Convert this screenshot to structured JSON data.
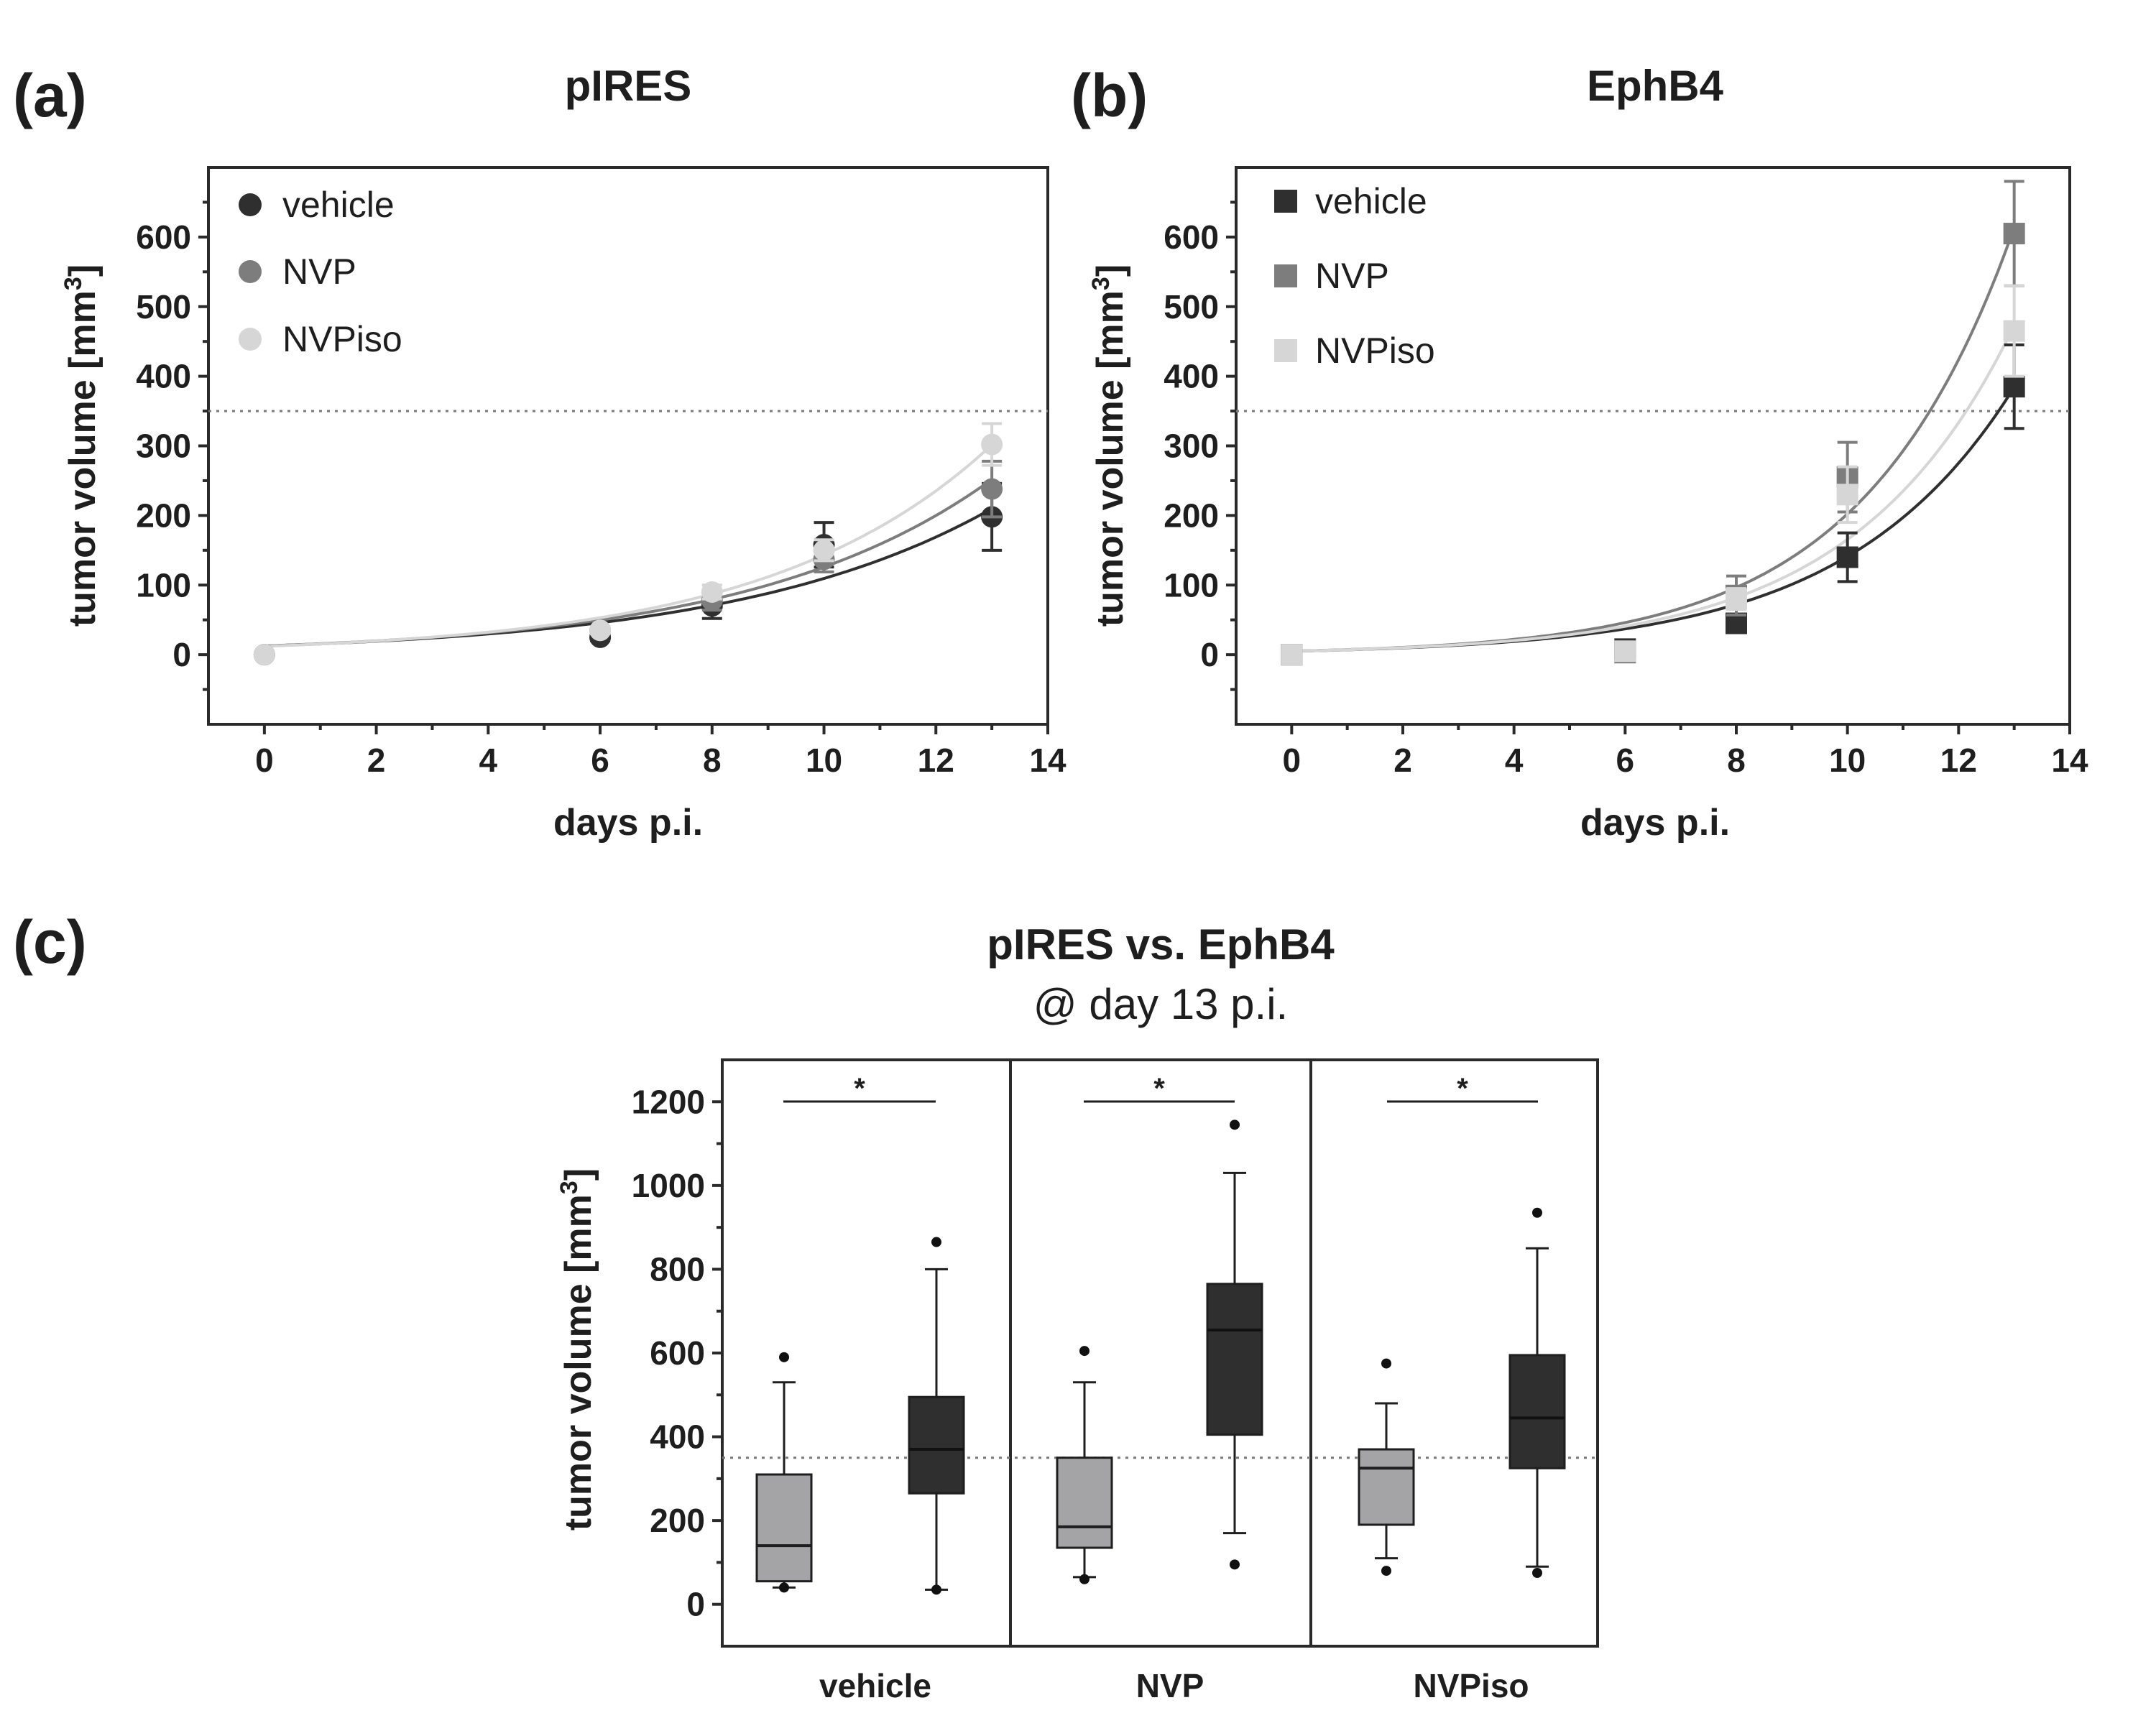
{
  "colors": {
    "vehicle": "#2f2f2f",
    "NVP": "#7d7d7d",
    "NVPiso": "#d6d6d6",
    "box_pIRES": "#a4a4a6",
    "box_EphB4": "#2f2f2f",
    "reference_line": "#7a7a7a"
  },
  "chart_data": [
    {
      "panel": "(a)",
      "type": "scatter",
      "title": "pIRES",
      "xlabel": "days p.i.",
      "ylabel": "tumor volume [mm³]",
      "ylabel_base": "tumor volume [mm",
      "ylabel_sup": "3",
      "ylabel_end": "]",
      "xlim": [
        -1,
        14
      ],
      "ylim": [
        -100,
        700
      ],
      "xticks": [
        0,
        2,
        4,
        6,
        8,
        10,
        12,
        14
      ],
      "yticks": [
        0,
        100,
        200,
        300,
        400,
        500,
        600
      ],
      "reference_line": 350,
      "marker": "circle",
      "legend_position": "top-left",
      "x": [
        0,
        6,
        8,
        10,
        13
      ],
      "series": [
        {
          "name": "vehicle",
          "values": [
            0,
            25,
            70,
            158,
            198
          ],
          "errors": [
            0,
            5,
            18,
            32,
            48
          ],
          "fit_a": 12.5,
          "fit_b": 0.217
        },
        {
          "name": "NVP",
          "values": [
            0,
            35,
            78,
            137,
            238
          ],
          "errors": [
            0,
            5,
            14,
            18,
            40
          ],
          "fit_a": 12.5,
          "fit_b": 0.231
        },
        {
          "name": "NVPiso",
          "values": [
            0,
            35,
            90,
            150,
            302
          ],
          "errors": [
            0,
            5,
            10,
            15,
            30
          ],
          "fit_a": 12.0,
          "fit_b": 0.248
        }
      ]
    },
    {
      "panel": "(b)",
      "type": "scatter",
      "title": "EphB4",
      "xlabel": "days p.i.",
      "ylabel": "tumor volume [mm³]",
      "ylabel_base": "tumor volume [mm",
      "ylabel_sup": "3",
      "ylabel_end": "]",
      "xlim": [
        -1,
        14
      ],
      "ylim": [
        -100,
        700
      ],
      "xticks": [
        0,
        2,
        4,
        6,
        8,
        10,
        12,
        14
      ],
      "yticks": [
        0,
        100,
        200,
        300,
        400,
        500,
        600
      ],
      "reference_line": 350,
      "marker": "square",
      "legend_position": "top-left",
      "x": [
        0,
        6,
        8,
        10,
        13
      ],
      "series": [
        {
          "name": "vehicle",
          "values": [
            0,
            8,
            45,
            140,
            385
          ],
          "errors": [
            0,
            6,
            10,
            35,
            60
          ],
          "fit_a": 5.0,
          "fit_b": 0.334
        },
        {
          "name": "NVP",
          "values": [
            0,
            3,
            85,
            255,
            605
          ],
          "errors": [
            0,
            6,
            28,
            50,
            75
          ],
          "fit_a": 5.0,
          "fit_b": 0.37
        },
        {
          "name": "NVPiso",
          "values": [
            0,
            5,
            80,
            230,
            465
          ],
          "errors": [
            0,
            6,
            15,
            40,
            65
          ],
          "fit_a": 5.0,
          "fit_b": 0.35
        }
      ]
    },
    {
      "panel": "(c)",
      "type": "box",
      "title": "pIRES vs. EphB4",
      "subtitle": "@ day 13 p.i.",
      "ylabel": "tumor volume [mm³]",
      "ylabel_base": "tumor volume [mm",
      "ylabel_sup": "3",
      "ylabel_end": "]",
      "ylim": [
        -100,
        1300
      ],
      "yticks": [
        0,
        200,
        400,
        600,
        800,
        1000,
        1200
      ],
      "reference_line": 350,
      "significance": "*",
      "categories": [
        "vehicle",
        "NVP",
        "NVPiso"
      ],
      "groups": [
        {
          "category": "vehicle",
          "line": "pIRES",
          "whisker_low": 40,
          "q1": 55,
          "median": 140,
          "q3": 310,
          "whisker_high": 530,
          "outliers": [
            40,
            590
          ]
        },
        {
          "category": "vehicle",
          "line": "EphB4",
          "whisker_low": 35,
          "q1": 265,
          "median": 370,
          "q3": 495,
          "whisker_high": 800,
          "outliers": [
            35,
            865
          ]
        },
        {
          "category": "NVP",
          "line": "pIRES",
          "whisker_low": 65,
          "q1": 135,
          "median": 185,
          "q3": 350,
          "whisker_high": 530,
          "outliers": [
            60,
            605
          ]
        },
        {
          "category": "NVP",
          "line": "EphB4",
          "whisker_low": 170,
          "q1": 405,
          "median": 655,
          "q3": 765,
          "whisker_high": 1030,
          "outliers": [
            95,
            1145
          ]
        },
        {
          "category": "NVPiso",
          "line": "pIRES",
          "whisker_low": 110,
          "q1": 190,
          "median": 325,
          "q3": 370,
          "whisker_high": 480,
          "outliers": [
            80,
            575
          ]
        },
        {
          "category": "NVPiso",
          "line": "EphB4",
          "whisker_low": 90,
          "q1": 325,
          "median": 445,
          "q3": 595,
          "whisker_high": 850,
          "outliers": [
            75,
            935
          ]
        }
      ]
    }
  ]
}
